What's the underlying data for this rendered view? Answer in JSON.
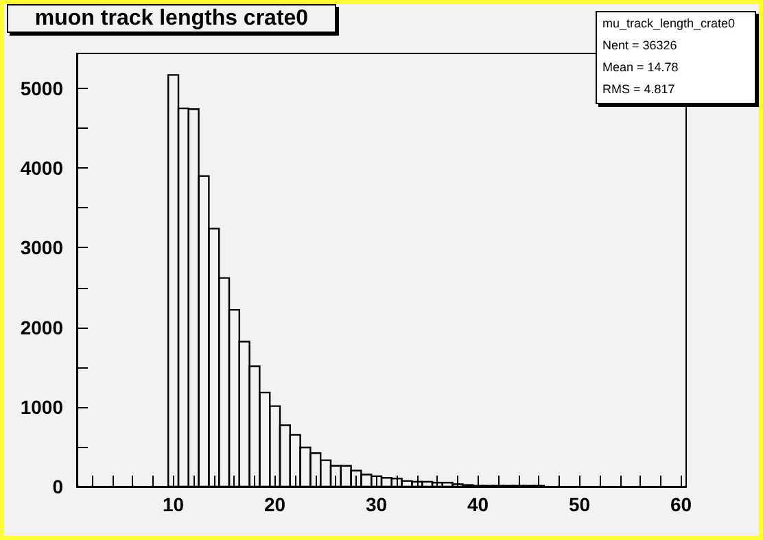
{
  "chart_data": {
    "type": "histogram",
    "title": "muon track lengths crate0",
    "bins": [
      9.5,
      10.5,
      11.5,
      12.5,
      13.5,
      14.5,
      15.5,
      16.5,
      17.5,
      18.5,
      19.5,
      20.5,
      21.5,
      22.5,
      23.5,
      24.5,
      25.5,
      26.5,
      27.5,
      28.5,
      29.5,
      30.5,
      31.5,
      32.5,
      33.5,
      34.5,
      35.5,
      36.5,
      37.5,
      38.5,
      39.5,
      40.5,
      41.5,
      42.5,
      43.5,
      44.5,
      45.5,
      46.5
    ],
    "values": [
      5170,
      4750,
      4740,
      3900,
      3240,
      2620,
      2220,
      1820,
      1510,
      1180,
      1010,
      770,
      650,
      490,
      420,
      330,
      260,
      260,
      200,
      150,
      130,
      110,
      100,
      70,
      60,
      60,
      50,
      50,
      30,
      20,
      10,
      10,
      10,
      10,
      10,
      10,
      10
    ],
    "color": "#000000",
    "xlim": [
      0.5,
      60.5
    ],
    "xticks": [
      {
        "value": 2,
        "label": null
      },
      {
        "value": 4,
        "label": null
      },
      {
        "value": 6,
        "label": null
      },
      {
        "value": 8,
        "label": null
      },
      10,
      {
        "value": 12,
        "label": null
      },
      {
        "value": 14,
        "label": null
      },
      {
        "value": 16,
        "label": null
      },
      {
        "value": 18,
        "label": null
      },
      20,
      {
        "value": 22,
        "label": null
      },
      {
        "value": 24,
        "label": null
      },
      {
        "value": 26,
        "label": null
      },
      {
        "value": 28,
        "label": null
      },
      30,
      {
        "value": 32,
        "label": null
      },
      {
        "value": 34,
        "label": null
      },
      {
        "value": 36,
        "label": null
      },
      {
        "value": 38,
        "label": null
      },
      40,
      {
        "value": 42,
        "label": null
      },
      {
        "value": 44,
        "label": null
      },
      {
        "value": 46,
        "label": null
      },
      {
        "value": 48,
        "label": null
      },
      50,
      {
        "value": 52,
        "label": null
      },
      {
        "value": 54,
        "label": null
      },
      {
        "value": 56,
        "label": null
      },
      {
        "value": 58,
        "label": null
      },
      60
    ],
    "ylim": [
      0,
      5440
    ],
    "yticks": [
      0,
      {
        "value": 500,
        "label": null
      },
      1000,
      {
        "value": 1500,
        "label": null
      },
      2000,
      {
        "value": 2500,
        "label": null
      },
      3000,
      {
        "value": 3500,
        "label": null
      },
      4000,
      {
        "value": 4500,
        "label": null
      },
      5000
    ],
    "annotations": [
      "mu_track_length_crate0",
      "Nent = 36326",
      "Mean = 14.78",
      "RMS = 4.817"
    ],
    "grid": false
  }
}
